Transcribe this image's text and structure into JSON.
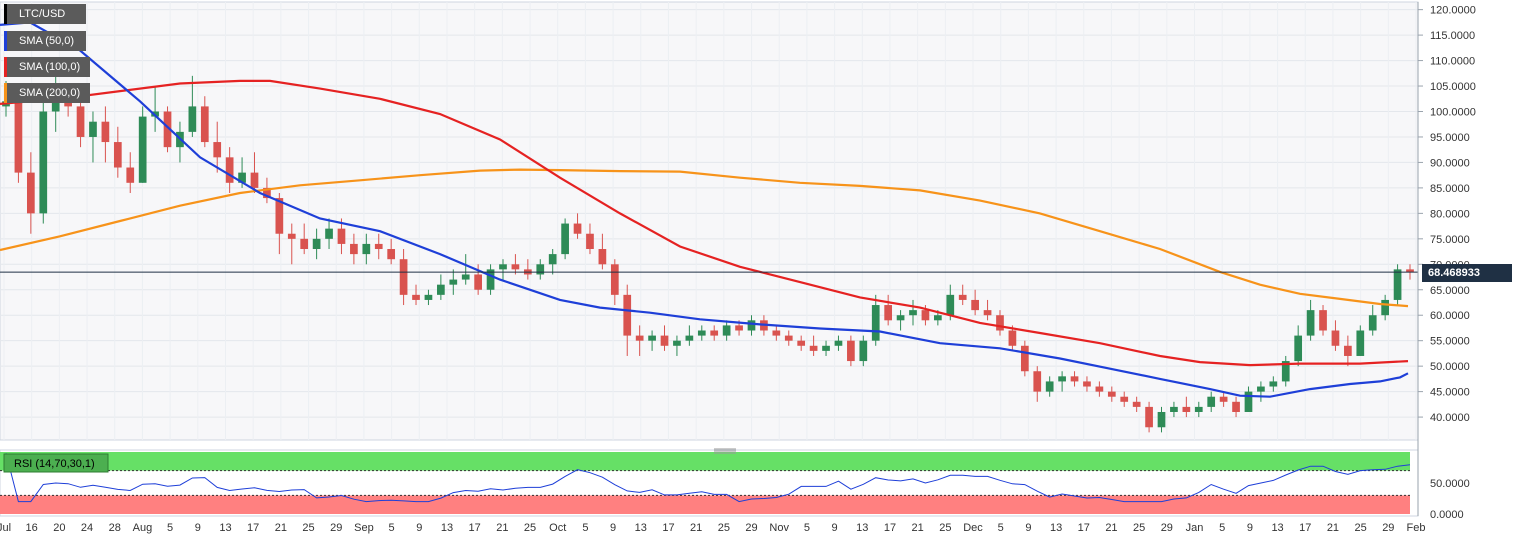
{
  "chart_data": {
    "type": "candlestick",
    "symbol": "LTC/USD",
    "indicators": [
      {
        "name": "SMA (50,0)",
        "color": "#1e3fd8"
      },
      {
        "name": "SMA (100,0)",
        "color": "#e52222"
      },
      {
        "name": "SMA (200,0)",
        "color": "#f7931a"
      }
    ],
    "price_axis": {
      "ticks": [
        "120.0000",
        "115.0000",
        "110.0000",
        "105.0000",
        "100.0000",
        "95.0000",
        "90.0000",
        "85.0000",
        "80.0000",
        "75.0000",
        "70.0000",
        "65.0000",
        "60.0000",
        "55.0000",
        "50.0000",
        "45.0000",
        "40.0000"
      ],
      "ylim": [
        35.5,
        121.5
      ]
    },
    "current_price": "68.468933",
    "x_axis_labels": [
      "Jul",
      "16",
      "20",
      "24",
      "28",
      "Aug",
      "5",
      "9",
      "13",
      "17",
      "21",
      "25",
      "29",
      "Sep",
      "5",
      "9",
      "13",
      "17",
      "21",
      "25",
      "Oct",
      "5",
      "9",
      "13",
      "17",
      "21",
      "25",
      "29",
      "Nov",
      "5",
      "9",
      "13",
      "17",
      "21",
      "25",
      "Dec",
      "5",
      "9",
      "13",
      "17",
      "21",
      "25",
      "29",
      "Jan",
      "5",
      "9",
      "13",
      "17",
      "21",
      "25",
      "29",
      "Feb"
    ],
    "sma50_points": [
      [
        0,
        117
      ],
      [
        30,
        117.5
      ],
      [
        80,
        112
      ],
      [
        140,
        102
      ],
      [
        200,
        91
      ],
      [
        260,
        84
      ],
      [
        320,
        79
      ],
      [
        380,
        76.5
      ],
      [
        440,
        72
      ],
      [
        500,
        67
      ],
      [
        560,
        63
      ],
      [
        600,
        61.5
      ],
      [
        650,
        60.5
      ],
      [
        700,
        59.2
      ],
      [
        760,
        58.2
      ],
      [
        820,
        57.4
      ],
      [
        880,
        56.8
      ],
      [
        940,
        54.5
      ],
      [
        1000,
        53.5
      ],
      [
        1060,
        51.5
      ],
      [
        1110,
        49.5
      ],
      [
        1160,
        47.5
      ],
      [
        1210,
        45.5
      ],
      [
        1240,
        44.2
      ],
      [
        1270,
        44
      ],
      [
        1310,
        45.5
      ],
      [
        1350,
        46.5
      ],
      [
        1380,
        47
      ],
      [
        1400,
        47.8
      ],
      [
        1408,
        48.6
      ]
    ],
    "sma100_points": [
      [
        0,
        101.5
      ],
      [
        60,
        102.5
      ],
      [
        120,
        104
      ],
      [
        180,
        105.5
      ],
      [
        240,
        106
      ],
      [
        270,
        106
      ],
      [
        320,
        104.5
      ],
      [
        380,
        102.5
      ],
      [
        440,
        99.5
      ],
      [
        500,
        94.5
      ],
      [
        560,
        87
      ],
      [
        620,
        80
      ],
      [
        680,
        73.5
      ],
      [
        740,
        69.5
      ],
      [
        800,
        66.5
      ],
      [
        860,
        63.5
      ],
      [
        920,
        61.5
      ],
      [
        980,
        58.5
      ],
      [
        1040,
        56.5
      ],
      [
        1100,
        54.5
      ],
      [
        1160,
        52
      ],
      [
        1200,
        50.8
      ],
      [
        1250,
        50.2
      ],
      [
        1300,
        50.5
      ],
      [
        1360,
        50.5
      ],
      [
        1408,
        51
      ]
    ],
    "sma200_points": [
      [
        0,
        72.8
      ],
      [
        60,
        75.5
      ],
      [
        120,
        78.5
      ],
      [
        180,
        81.5
      ],
      [
        240,
        84
      ],
      [
        300,
        85.5
      ],
      [
        360,
        86.5
      ],
      [
        420,
        87.5
      ],
      [
        480,
        88.4
      ],
      [
        520,
        88.6
      ],
      [
        560,
        88.5
      ],
      [
        620,
        88.3
      ],
      [
        680,
        88.2
      ],
      [
        740,
        87
      ],
      [
        800,
        86
      ],
      [
        860,
        85.4
      ],
      [
        920,
        84.5
      ],
      [
        980,
        82.5
      ],
      [
        1040,
        80
      ],
      [
        1100,
        76.5
      ],
      [
        1160,
        73
      ],
      [
        1220,
        68.5
      ],
      [
        1260,
        66
      ],
      [
        1300,
        64.2
      ],
      [
        1340,
        63.2
      ],
      [
        1380,
        62.2
      ],
      [
        1408,
        61.8
      ]
    ],
    "candles": [
      [
        101,
        106,
        99,
        102
      ],
      [
        102,
        104,
        86,
        88
      ],
      [
        88,
        92,
        76,
        80
      ],
      [
        80,
        102,
        78,
        100
      ],
      [
        100,
        108,
        96,
        102
      ],
      [
        102,
        105,
        99,
        101
      ],
      [
        101,
        104,
        93,
        95
      ],
      [
        95,
        100,
        90,
        98
      ],
      [
        98,
        101,
        90,
        94
      ],
      [
        94,
        97,
        87,
        89
      ],
      [
        89,
        92,
        84,
        86
      ],
      [
        86,
        101,
        86,
        99
      ],
      [
        99,
        105,
        96,
        100
      ],
      [
        100,
        101,
        92,
        93
      ],
      [
        93,
        98,
        90,
        96
      ],
      [
        96,
        107,
        95,
        101
      ],
      [
        101,
        103,
        93,
        94
      ],
      [
        94,
        98,
        88,
        91
      ],
      [
        91,
        93,
        84,
        86
      ],
      [
        86,
        91,
        85,
        88
      ],
      [
        88,
        92,
        84,
        85
      ],
      [
        85,
        87,
        82,
        83
      ],
      [
        83,
        84,
        72,
        76
      ],
      [
        76,
        78,
        70,
        75
      ],
      [
        75,
        78,
        72,
        73
      ],
      [
        73,
        77,
        71,
        75
      ],
      [
        75,
        79,
        73,
        77
      ],
      [
        77,
        79,
        72,
        74
      ],
      [
        74,
        76,
        70,
        72
      ],
      [
        72,
        76,
        70,
        74
      ],
      [
        74,
        76,
        71,
        73
      ],
      [
        73,
        75,
        70,
        71
      ],
      [
        71,
        73,
        62,
        64
      ],
      [
        64,
        66,
        62,
        63
      ],
      [
        63,
        65,
        62,
        64
      ],
      [
        64,
        68,
        63,
        66
      ],
      [
        66,
        69,
        64,
        67
      ],
      [
        67,
        72,
        66,
        68
      ],
      [
        68,
        70,
        64,
        65
      ],
      [
        65,
        70,
        64,
        69
      ],
      [
        69,
        71,
        67,
        70
      ],
      [
        70,
        72,
        68,
        69
      ],
      [
        69,
        71,
        67,
        68
      ],
      [
        68,
        71,
        67,
        70
      ],
      [
        70,
        73,
        68,
        72
      ],
      [
        72,
        79,
        71,
        78
      ],
      [
        78,
        80,
        75,
        76
      ],
      [
        76,
        78,
        72,
        73
      ],
      [
        73,
        76,
        69,
        70
      ],
      [
        70,
        71,
        62,
        64
      ],
      [
        64,
        66,
        52,
        56
      ],
      [
        56,
        58,
        52,
        55
      ],
      [
        55,
        57,
        53,
        56
      ],
      [
        56,
        58,
        53,
        54
      ],
      [
        54,
        56,
        52,
        55
      ],
      [
        55,
        58,
        54,
        56
      ],
      [
        56,
        58,
        55,
        57
      ],
      [
        57,
        58,
        55,
        56
      ],
      [
        56,
        59,
        55,
        58
      ],
      [
        58,
        59,
        56,
        57
      ],
      [
        57,
        60,
        56,
        59
      ],
      [
        59,
        60,
        56,
        57
      ],
      [
        57,
        58,
        55,
        56
      ],
      [
        56,
        57,
        54,
        55
      ],
      [
        55,
        56,
        53,
        54
      ],
      [
        54,
        56,
        52,
        53
      ],
      [
        53,
        55,
        52,
        54
      ],
      [
        54,
        56,
        53,
        55
      ],
      [
        55,
        56,
        50,
        51
      ],
      [
        51,
        56,
        50,
        55
      ],
      [
        55,
        64,
        54,
        62
      ],
      [
        62,
        64,
        58,
        59
      ],
      [
        59,
        61,
        57,
        60
      ],
      [
        60,
        63,
        58,
        61
      ],
      [
        61,
        62,
        58,
        59
      ],
      [
        59,
        61,
        58,
        60
      ],
      [
        60,
        66,
        59,
        64
      ],
      [
        64,
        66,
        62,
        63
      ],
      [
        63,
        65,
        60,
        61
      ],
      [
        61,
        63,
        59,
        60
      ],
      [
        60,
        61,
        56,
        57
      ],
      [
        57,
        58,
        53,
        54
      ],
      [
        54,
        55,
        48,
        49
      ],
      [
        49,
        50,
        43,
        45
      ],
      [
        45,
        48,
        44,
        47
      ],
      [
        47,
        49,
        45,
        48
      ],
      [
        48,
        49,
        46,
        47
      ],
      [
        47,
        48,
        45,
        46
      ],
      [
        46,
        47,
        44,
        45
      ],
      [
        45,
        46,
        43,
        44
      ],
      [
        44,
        45,
        42,
        43
      ],
      [
        43,
        44,
        41,
        42
      ],
      [
        42,
        43,
        37,
        38
      ],
      [
        38,
        42,
        37,
        41
      ],
      [
        41,
        43,
        40,
        42
      ],
      [
        42,
        44,
        40,
        41
      ],
      [
        41,
        43,
        40,
        42
      ],
      [
        42,
        45,
        41,
        44
      ],
      [
        44,
        45,
        42,
        43
      ],
      [
        43,
        44,
        40,
        41
      ],
      [
        41,
        46,
        41,
        45
      ],
      [
        45,
        47,
        43,
        46
      ],
      [
        46,
        48,
        45,
        47
      ],
      [
        47,
        52,
        46,
        51
      ],
      [
        51,
        58,
        50,
        56
      ],
      [
        56,
        63,
        55,
        61
      ],
      [
        61,
        62,
        56,
        57
      ],
      [
        57,
        59,
        53,
        54
      ],
      [
        54,
        56,
        50,
        52
      ],
      [
        52,
        58,
        52,
        57
      ],
      [
        57,
        62,
        56,
        60
      ],
      [
        60,
        64,
        59,
        63
      ],
      [
        63,
        70,
        62,
        69
      ],
      [
        69,
        70,
        67,
        68.47
      ]
    ]
  }
}
